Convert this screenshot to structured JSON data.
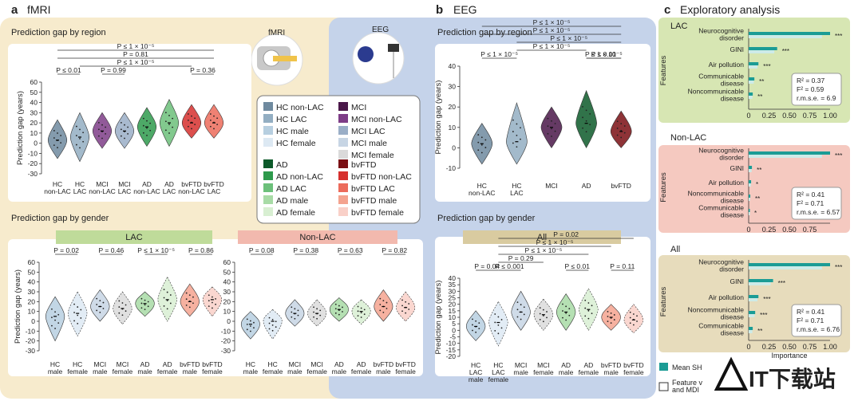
{
  "figure": {
    "panel_a": {
      "letter": "a",
      "title": "fMRI",
      "device_label": "fMRI"
    },
    "panel_b": {
      "letter": "b",
      "title": "EEG",
      "device_label": "EEG"
    },
    "panel_c": {
      "letter": "c",
      "title": "Exploratory analysis"
    },
    "watermark_text": "IT下载站"
  },
  "colors": {
    "panel_a_bg": "#f7ebcd",
    "panel_b_bg": "#c5d3ea",
    "panel_c_lac_bg": "#d7e6b3",
    "panel_c_nonlac_bg": "#f5c9c0",
    "panel_c_all_bg": "#e7dcbc",
    "lac_banner": "#bfdb9a",
    "nonlac_banner": "#f2b9ae",
    "all_banner": "#d9cba0",
    "shap_bar": "#1b9c95",
    "shap_bar_light": "#cdebe8"
  },
  "legend": {
    "entries": [
      {
        "label": "HC non-LAC",
        "color": "#6f8a9f"
      },
      {
        "label": "HC LAC",
        "color": "#93aec2"
      },
      {
        "label": "HC male",
        "color": "#b7cfe0"
      },
      {
        "label": "HC female",
        "color": "#dde9f3"
      },
      {
        "label": "MCI",
        "color": "#4a1749"
      },
      {
        "label": "MCI non-LAC",
        "color": "#7e3d87"
      },
      {
        "label": "MCI LAC",
        "color": "#9aaec7"
      },
      {
        "label": "MCI male",
        "color": "#c7d5e4"
      },
      {
        "label": "MCI female",
        "color": "#dadada"
      },
      {
        "label": "AD",
        "color": "#0d5a2a"
      },
      {
        "label": "AD non-LAC",
        "color": "#2e9a4c"
      },
      {
        "label": "AD LAC",
        "color": "#6cc07a"
      },
      {
        "label": "AD male",
        "color": "#a8dba6"
      },
      {
        "label": "AD female",
        "color": "#d8efd2"
      },
      {
        "label": "bvFTD",
        "color": "#7a0f14"
      },
      {
        "label": "bvFTD non-LAC",
        "color": "#d6302e"
      },
      {
        "label": "bvFTD LAC",
        "color": "#ec6b5b"
      },
      {
        "label": "bvFTD male",
        "color": "#f4a38f"
      },
      {
        "label": "bvFTD female",
        "color": "#f9d0c8"
      }
    ]
  },
  "chart_data": [
    {
      "id": "fmri_region",
      "type": "violin",
      "title": "Prediction gap by region",
      "ylabel": "Prediction gap (years)",
      "ylim": [
        -30,
        60
      ],
      "yticks": [
        -30,
        -20,
        -10,
        0,
        10,
        20,
        30,
        40,
        50,
        60
      ],
      "categories": [
        "HC\nnon-LAC",
        "HC\nLAC",
        "MCI\nnon-LAC",
        "MCI\nLAC",
        "AD\nnon-LAC",
        "AD\nLAC",
        "bvFTD\nnon-LAC",
        "bvFTD\nLAC"
      ],
      "medians": [
        3,
        6,
        12,
        12,
        16,
        20,
        20,
        20
      ],
      "ranges": [
        [
          -15,
          23
        ],
        [
          -18,
          30
        ],
        [
          -5,
          30
        ],
        [
          -5,
          30
        ],
        [
          -3,
          35
        ],
        [
          -3,
          43
        ],
        [
          5,
          38
        ],
        [
          5,
          38
        ]
      ],
      "annotations": [
        {
          "text": "P ≤ 0.01",
          "between": [
            0,
            1
          ]
        },
        {
          "text": "P = 0.99",
          "between": [
            2,
            3
          ]
        },
        {
          "text": "P = 0.36",
          "between": [
            6,
            7
          ]
        },
        {
          "text": "P ≤ 1 × 10⁻⁵",
          "between": [
            1,
            6
          ]
        },
        {
          "text": "P = 0.81",
          "between": [
            0,
            7
          ]
        },
        {
          "text": "P ≤ 1 × 10⁻⁵",
          "between": [
            0,
            7
          ]
        }
      ]
    },
    {
      "id": "eeg_region",
      "type": "violin",
      "title": "Prediction gap by region",
      "ylabel": "Prediction gap (years)",
      "ylim": [
        -10,
        40
      ],
      "yticks": [
        -10,
        0,
        10,
        20,
        30,
        40
      ],
      "categories": [
        "HC\nnon-LAC",
        "HC\nLAC",
        "MCI",
        "AD",
        "bvFTD"
      ],
      "medians": [
        2,
        3,
        10,
        12,
        8
      ],
      "ranges": [
        [
          -8,
          12
        ],
        [
          -8,
          22
        ],
        [
          0,
          20
        ],
        [
          0,
          28
        ],
        [
          0,
          18
        ]
      ],
      "annotations": [
        {
          "text": "P ≤ 1 × 10⁻⁵",
          "between": [
            0,
            1
          ]
        },
        {
          "text": "P ≤ 1 × 10⁻⁵",
          "between": [
            1,
            3
          ]
        },
        {
          "text": "P ≤ 1 × 10⁻⁵",
          "between": [
            1,
            4
          ]
        },
        {
          "text": "P ≤ 1 × 10⁻⁵",
          "between": [
            3,
            4
          ]
        },
        {
          "text": "P ≤ 0.01",
          "between": [
            3,
            4
          ]
        },
        {
          "text": "P ≤ 1 × 10⁻⁵",
          "between": [
            0,
            4
          ]
        },
        {
          "text": "P ≤ 1 × 10⁻⁵",
          "between": [
            0,
            4
          ]
        }
      ]
    },
    {
      "id": "fmri_gender_lac",
      "type": "violin",
      "title": "Prediction gap by gender",
      "banner": "LAC",
      "ylabel": "Prediction gap (years)",
      "ylim": [
        -30,
        60
      ],
      "yticks": [
        -30,
        -20,
        -10,
        0,
        10,
        20,
        30,
        40,
        50,
        60
      ],
      "categories": [
        "HC\nmale",
        "HC\nfemale",
        "MCI\nmale",
        "MCI\nfemale",
        "AD\nmale",
        "AD\nfemale",
        "bvFTD\nmale",
        "bvFTD\nfemale"
      ],
      "medians": [
        5,
        8,
        15,
        13,
        18,
        22,
        20,
        22
      ],
      "ranges": [
        [
          -20,
          25
        ],
        [
          -15,
          30
        ],
        [
          0,
          32
        ],
        [
          -3,
          30
        ],
        [
          5,
          30
        ],
        [
          0,
          45
        ],
        [
          5,
          38
        ],
        [
          5,
          35
        ]
      ],
      "annotations": [
        {
          "text": "P = 0.02",
          "between": [
            0,
            1
          ]
        },
        {
          "text": "P = 0.46",
          "between": [
            2,
            3
          ]
        },
        {
          "text": "P ≤ 1 × 10⁻⁵",
          "between": [
            4,
            5
          ]
        },
        {
          "text": "P = 0.86",
          "between": [
            6,
            7
          ]
        }
      ]
    },
    {
      "id": "fmri_gender_nonlac",
      "type": "violin",
      "banner": "Non-LAC",
      "ylim": [
        -30,
        60
      ],
      "yticks": [
        -30,
        -20,
        -10,
        0,
        10,
        20,
        30,
        40,
        50,
        60
      ],
      "categories": [
        "HC\nmale",
        "HC\nfemale",
        "MCI\nmale",
        "MCI\nfemale",
        "AD\nmale",
        "AD\nfemale",
        "bvFTD\nmale",
        "bvFTD\nfemale"
      ],
      "medians": [
        -3,
        0,
        8,
        8,
        12,
        10,
        15,
        14
      ],
      "ranges": [
        [
          -18,
          10
        ],
        [
          -18,
          12
        ],
        [
          -5,
          22
        ],
        [
          -5,
          22
        ],
        [
          0,
          24
        ],
        [
          -3,
          22
        ],
        [
          0,
          32
        ],
        [
          0,
          30
        ]
      ],
      "annotations": [
        {
          "text": "P = 0.08",
          "between": [
            0,
            1
          ]
        },
        {
          "text": "P = 0.38",
          "between": [
            2,
            3
          ]
        },
        {
          "text": "P = 0.63",
          "between": [
            4,
            5
          ]
        },
        {
          "text": "P = 0.82",
          "between": [
            6,
            7
          ]
        }
      ]
    },
    {
      "id": "eeg_gender_all",
      "type": "violin",
      "title": "Prediction gap by gender",
      "banner": "All",
      "ylabel": "Prediction gap (years)",
      "ylim": [
        -20,
        40
      ],
      "yticks": [
        -20,
        -15,
        -10,
        -5,
        0,
        5,
        10,
        15,
        20,
        25,
        30,
        35,
        40
      ],
      "categories": [
        "HC\nLAC\nmale",
        "HC\nLAC\nfemale",
        "MCI\nmale",
        "MCI\nfemale",
        "AD\nmale",
        "AD\nfemale",
        "bvFTD\nmale",
        "bvFTD\nfemale"
      ],
      "medians": [
        3,
        6,
        14,
        12,
        14,
        16,
        10,
        8
      ],
      "ranges": [
        [
          -8,
          15
        ],
        [
          -12,
          22
        ],
        [
          0,
          30
        ],
        [
          0,
          24
        ],
        [
          0,
          28
        ],
        [
          0,
          32
        ],
        [
          0,
          20
        ],
        [
          -2,
          20
        ]
      ],
      "annotations": [
        {
          "text": "P = 0.04",
          "between": [
            0,
            1
          ]
        },
        {
          "text": "P ≤ 0.001",
          "between": [
            1,
            2
          ]
        },
        {
          "text": "P = 0.29",
          "between": [
            1,
            3
          ]
        },
        {
          "text": "P ≤ 0.01",
          "between": [
            4,
            5
          ]
        },
        {
          "text": "P = 0.11",
          "between": [
            6,
            7
          ]
        },
        {
          "text": "P ≤ 1 × 10⁻⁵",
          "between": [
            1,
            5
          ]
        },
        {
          "text": "P ≤ 1 × 10⁻⁵",
          "between": [
            1,
            6
          ]
        },
        {
          "text": "P = 0.02",
          "between": [
            1,
            7
          ]
        }
      ]
    },
    {
      "id": "shap_lac",
      "type": "bar",
      "section": "LAC",
      "ylabel": "Features",
      "xlim": [
        0,
        1.0
      ],
      "xticks": [
        "0",
        "0.25",
        "0.50",
        "0.75",
        "1.00"
      ],
      "categories": [
        "Neurocognitive\ndisorder",
        "GINI",
        "Air pollution",
        "Communicable\ndisease",
        "Noncommunicable\ndisease"
      ],
      "values": [
        1.0,
        0.35,
        0.12,
        0.07,
        0.05
      ],
      "stars": [
        "***",
        "***",
        "***",
        "**",
        "**"
      ],
      "stats": {
        "r2": "R² = 0.37",
        "f2": "F² = 0.59",
        "rmse": "r.m.s.e. = 6.9"
      }
    },
    {
      "id": "shap_nonlac",
      "type": "bar",
      "section": "Non-LAC",
      "ylabel": "Features",
      "xlim": [
        0,
        1.0
      ],
      "xticks": [
        "0",
        "0.25",
        "0.50",
        "0.75"
      ],
      "categories": [
        "Neurocognitive\ndisorder",
        "GINI",
        "Air pollution",
        "Noncommunicable\ndisease",
        "Communicable\ndisease"
      ],
      "values": [
        1.0,
        0.04,
        0.03,
        0.02,
        0.01
      ],
      "stars": [
        "***",
        "**",
        "*",
        "**",
        "*"
      ],
      "stats": {
        "r2": "R² = 0.41",
        "f2": "F² = 0.71",
        "rmse": "r.m.s.e. = 6.57"
      }
    },
    {
      "id": "shap_all",
      "type": "bar",
      "section": "All",
      "ylabel": "Features",
      "xlabel": "Importance",
      "xlim": [
        0,
        1.0
      ],
      "xticks": [
        "0",
        "0.25",
        "0.50",
        "0.75",
        "1.00"
      ],
      "categories": [
        "Neurocognitive\ndisorder",
        "GINI",
        "Air pollution",
        "Noncommunicable\ndisease",
        "Communicable\ndisease"
      ],
      "values": [
        1.0,
        0.3,
        0.12,
        0.08,
        0.05
      ],
      "stars": [
        "***",
        "***",
        "***",
        "***",
        "**"
      ],
      "stats": {
        "r2": "R² = 0.41",
        "f2": "F² = 0.71",
        "rmse": "r.m.s.e. = 6.76"
      },
      "legend": [
        "Mean SH",
        "Feature v\nand MDI"
      ]
    }
  ]
}
